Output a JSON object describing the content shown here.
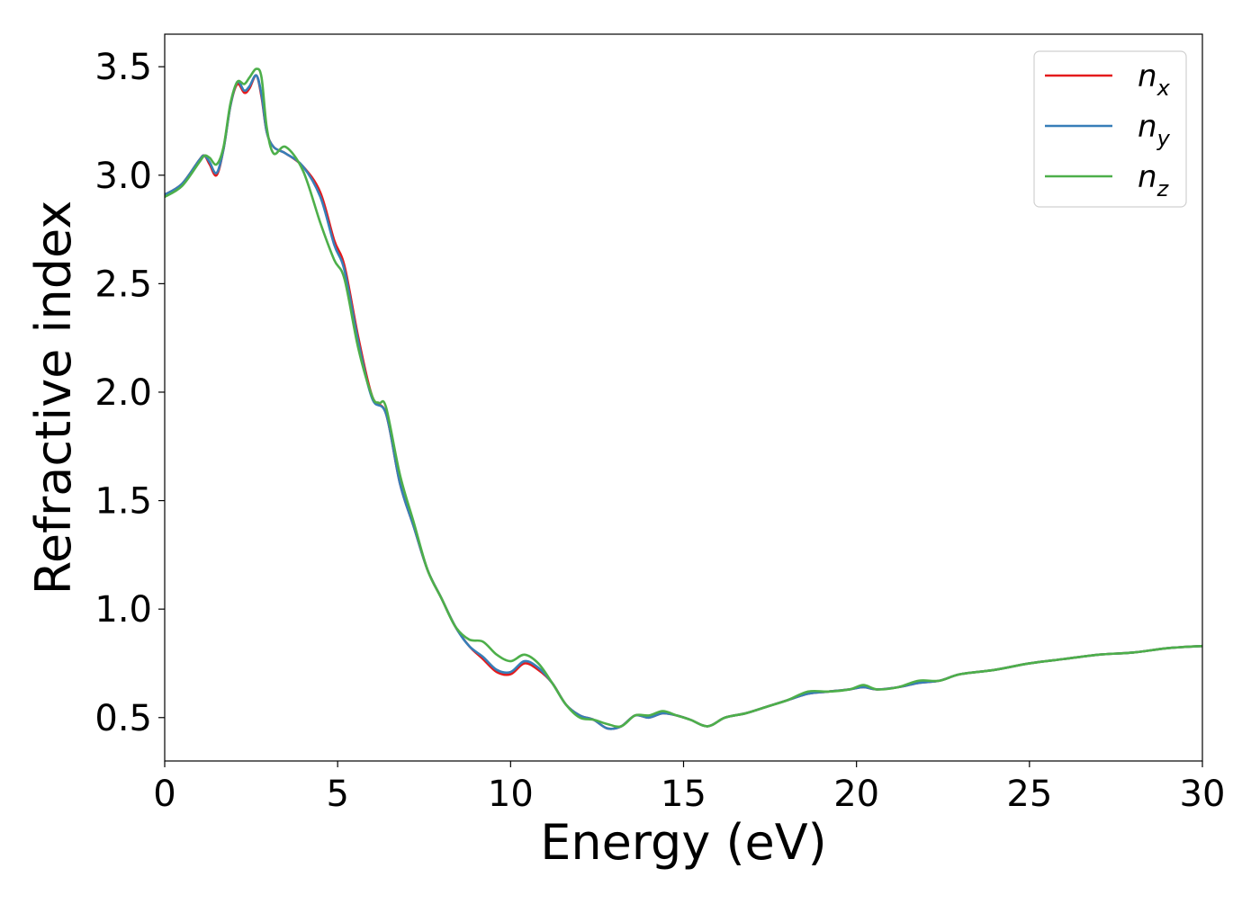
{
  "chart_data": {
    "type": "line",
    "xlabel": "Energy (eV)",
    "ylabel": "Refractive index",
    "xlim": [
      0,
      30
    ],
    "ylim": [
      0.3,
      3.65
    ],
    "xticks": [
      0,
      5,
      10,
      15,
      20,
      25,
      30
    ],
    "xtick_labels": [
      "0",
      "5",
      "10",
      "15",
      "20",
      "25",
      "30"
    ],
    "yticks": [
      0.5,
      1.0,
      1.5,
      2.0,
      2.5,
      3.0,
      3.5
    ],
    "ytick_labels": [
      "0.5",
      "1.0",
      "1.5",
      "2.0",
      "2.5",
      "3.0",
      "3.5"
    ],
    "grid": false,
    "legend_position": "top-right",
    "series": [
      {
        "name": "n_x",
        "label_main": "n",
        "label_sub": "x",
        "color": "#e41a1c",
        "x": [
          0,
          0.5,
          1.0,
          1.15,
          1.3,
          1.5,
          1.7,
          1.9,
          2.1,
          2.3,
          2.45,
          2.65,
          2.8,
          2.95,
          3.15,
          3.5,
          4.0,
          4.5,
          4.9,
          5.2,
          5.6,
          6.0,
          6.4,
          6.8,
          7.2,
          7.6,
          8.0,
          8.4,
          8.8,
          9.2,
          9.6,
          10.0,
          10.4,
          10.8,
          11.2,
          11.6,
          12.0,
          12.4,
          12.8,
          13.2,
          13.6,
          14.0,
          14.4,
          14.8,
          15.2,
          15.7,
          16.2,
          16.8,
          17.4,
          18.0,
          18.6,
          19.2,
          19.8,
          20.2,
          20.6,
          21.2,
          21.8,
          22.4,
          23.0,
          24.0,
          25.0,
          26.0,
          27.0,
          28.0,
          29.0,
          30.0
        ],
        "y": [
          2.91,
          2.96,
          3.07,
          3.09,
          3.05,
          3.0,
          3.12,
          3.32,
          3.42,
          3.38,
          3.4,
          3.46,
          3.36,
          3.2,
          3.13,
          3.1,
          3.04,
          2.92,
          2.7,
          2.58,
          2.25,
          1.98,
          1.9,
          1.58,
          1.38,
          1.18,
          1.05,
          0.92,
          0.83,
          0.77,
          0.71,
          0.7,
          0.75,
          0.72,
          0.66,
          0.56,
          0.51,
          0.49,
          0.45,
          0.46,
          0.51,
          0.5,
          0.52,
          0.51,
          0.49,
          0.46,
          0.5,
          0.52,
          0.55,
          0.58,
          0.61,
          0.62,
          0.63,
          0.64,
          0.63,
          0.64,
          0.66,
          0.67,
          0.7,
          0.72,
          0.75,
          0.77,
          0.79,
          0.8,
          0.82,
          0.83
        ]
      },
      {
        "name": "n_y",
        "label_main": "n",
        "label_sub": "y",
        "color": "#377eb8",
        "x": [
          0,
          0.5,
          1.0,
          1.15,
          1.3,
          1.5,
          1.7,
          1.9,
          2.1,
          2.3,
          2.45,
          2.65,
          2.8,
          2.95,
          3.15,
          3.5,
          4.0,
          4.5,
          4.9,
          5.2,
          5.6,
          6.0,
          6.4,
          6.8,
          7.2,
          7.6,
          8.0,
          8.4,
          8.8,
          9.2,
          9.6,
          10.0,
          10.4,
          10.8,
          11.2,
          11.6,
          12.0,
          12.4,
          12.8,
          13.2,
          13.6,
          14.0,
          14.4,
          14.8,
          15.2,
          15.7,
          16.2,
          16.8,
          17.4,
          18.0,
          18.6,
          19.2,
          19.8,
          20.2,
          20.6,
          21.2,
          21.8,
          22.4,
          23.0,
          24.0,
          25.0,
          26.0,
          27.0,
          28.0,
          29.0,
          30.0
        ],
        "y": [
          2.91,
          2.96,
          3.07,
          3.09,
          3.06,
          3.01,
          3.12,
          3.32,
          3.43,
          3.39,
          3.41,
          3.46,
          3.37,
          3.2,
          3.13,
          3.1,
          3.04,
          2.9,
          2.68,
          2.56,
          2.23,
          1.97,
          1.9,
          1.58,
          1.38,
          1.18,
          1.05,
          0.92,
          0.83,
          0.78,
          0.72,
          0.71,
          0.76,
          0.73,
          0.66,
          0.56,
          0.51,
          0.49,
          0.45,
          0.46,
          0.51,
          0.5,
          0.52,
          0.51,
          0.49,
          0.46,
          0.5,
          0.52,
          0.55,
          0.58,
          0.61,
          0.62,
          0.63,
          0.64,
          0.63,
          0.64,
          0.66,
          0.67,
          0.7,
          0.72,
          0.75,
          0.77,
          0.79,
          0.8,
          0.82,
          0.83
        ]
      },
      {
        "name": "n_z",
        "label_main": "n",
        "label_sub": "z",
        "color": "#4daf4a",
        "x": [
          0,
          0.5,
          1.0,
          1.15,
          1.3,
          1.5,
          1.7,
          1.9,
          2.1,
          2.3,
          2.45,
          2.65,
          2.8,
          2.95,
          3.15,
          3.5,
          4.0,
          4.5,
          4.9,
          5.2,
          5.6,
          6.0,
          6.2,
          6.4,
          6.8,
          7.2,
          7.6,
          8.0,
          8.4,
          8.8,
          9.2,
          9.6,
          10.0,
          10.4,
          10.8,
          11.2,
          11.6,
          12.0,
          12.4,
          12.8,
          13.2,
          13.6,
          14.0,
          14.4,
          14.8,
          15.2,
          15.7,
          16.2,
          16.8,
          17.4,
          18.0,
          18.6,
          19.2,
          19.8,
          20.2,
          20.6,
          21.2,
          21.8,
          22.4,
          23.0,
          24.0,
          25.0,
          26.0,
          27.0,
          28.0,
          29.0,
          30.0
        ],
        "y": [
          2.9,
          2.95,
          3.06,
          3.09,
          3.08,
          3.05,
          3.13,
          3.33,
          3.43,
          3.42,
          3.45,
          3.49,
          3.45,
          3.22,
          3.1,
          3.13,
          3.02,
          2.78,
          2.61,
          2.52,
          2.2,
          1.98,
          1.95,
          1.93,
          1.62,
          1.4,
          1.18,
          1.05,
          0.92,
          0.86,
          0.85,
          0.79,
          0.76,
          0.79,
          0.75,
          0.66,
          0.56,
          0.5,
          0.49,
          0.47,
          0.46,
          0.51,
          0.51,
          0.53,
          0.51,
          0.49,
          0.46,
          0.5,
          0.52,
          0.55,
          0.58,
          0.62,
          0.62,
          0.63,
          0.65,
          0.63,
          0.64,
          0.67,
          0.67,
          0.7,
          0.72,
          0.75,
          0.77,
          0.79,
          0.8,
          0.82,
          0.83
        ]
      }
    ]
  }
}
